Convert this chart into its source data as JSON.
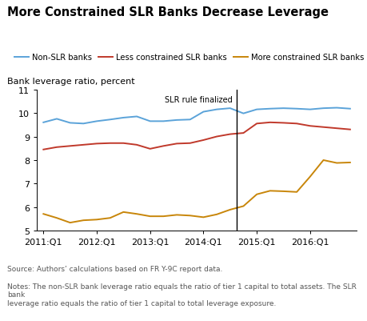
{
  "title": "More Constrained SLR Banks Decrease Leverage",
  "ylabel": "Bank leverage ratio, percent",
  "source_text": "Source: Authors’ calculations based on FR Y-9C report data.",
  "notes_text": "Notes: The non-SLR bank leverage ratio equals the ratio of tier 1 capital to total assets. The SLR bank\nleverage ratio equals the ratio of tier 1 capital to total leverage exposure.",
  "vline_label": "SLR rule finalized",
  "vline_x": 14.5,
  "ylim": [
    5,
    11
  ],
  "yticks": [
    5,
    6,
    7,
    8,
    9,
    10,
    11
  ],
  "colors": {
    "non_slr": "#5ba3d9",
    "less_constrained": "#c0392b",
    "more_constrained": "#c8860a"
  },
  "legend_labels": [
    "Non-SLR banks",
    "Less constrained SLR banks",
    "More constrained SLR banks"
  ],
  "non_slr": [
    9.6,
    9.75,
    9.58,
    9.55,
    9.65,
    9.72,
    9.8,
    9.85,
    9.65,
    9.65,
    9.7,
    9.72,
    10.05,
    10.15,
    10.2,
    9.98,
    10.15,
    10.18,
    10.2,
    10.18,
    10.15,
    10.2,
    10.22,
    10.18
  ],
  "less_constrained": [
    8.45,
    8.55,
    8.6,
    8.65,
    8.7,
    8.72,
    8.72,
    8.65,
    8.48,
    8.6,
    8.7,
    8.72,
    8.85,
    9.0,
    9.1,
    9.15,
    9.55,
    9.6,
    9.58,
    9.55,
    9.45,
    9.4,
    9.35,
    9.3
  ],
  "more_constrained": [
    5.72,
    5.55,
    5.35,
    5.45,
    5.48,
    5.55,
    5.8,
    5.72,
    5.62,
    5.62,
    5.68,
    5.65,
    5.58,
    5.7,
    5.9,
    6.05,
    6.55,
    6.7,
    6.68,
    6.65,
    7.3,
    8.0,
    7.88,
    7.9
  ],
  "xtick_positions": [
    0,
    4,
    8,
    12,
    16,
    20
  ],
  "xtick_labels": [
    "2011:Q1",
    "2012:Q1",
    "2013:Q1",
    "2014:Q1",
    "2015:Q1",
    "2016:Q1"
  ],
  "n_quarters": 24
}
